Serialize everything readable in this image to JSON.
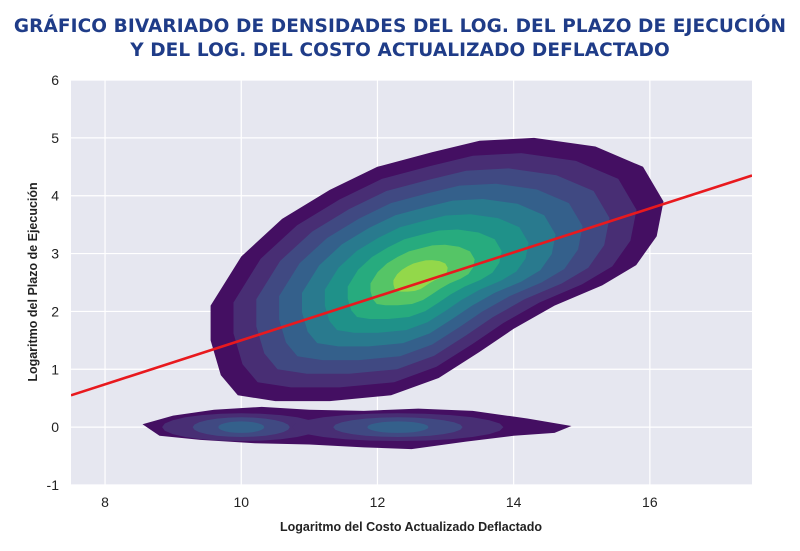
{
  "chart_data": {
    "type": "density_contour",
    "title_lines": [
      "GRÁFICO BIVARIADO DE DENSIDADES DEL LOG. DEL PLAZO DE EJECUCIÓN",
      "Y DEL LOG. DEL COSTO ACTUALIZADO DEFLACTADO"
    ],
    "xlabel": "Logaritmo del Costo Actualizado Deflactado",
    "ylabel": "Logaritmo del Plazo de Ejecución",
    "xlim": [
      7.5,
      17.5
    ],
    "ylim": [
      -1,
      6
    ],
    "xticks": [
      8,
      10,
      12,
      14,
      16
    ],
    "yticks": [
      -1,
      0,
      1,
      2,
      3,
      4,
      5,
      6
    ],
    "grid": true,
    "density_levels": 9,
    "main_cluster": {
      "outer_extent_x": [
        9.5,
        16.2
      ],
      "outer_extent_y": [
        0.45,
        5.0
      ],
      "peak": [
        12.6,
        2.6
      ]
    },
    "lower_band": {
      "extent_x": [
        8.5,
        14.9
      ],
      "center_y": 0.0,
      "modes": [
        [
          10.0,
          0.0
        ],
        [
          12.3,
          0.0
        ]
      ]
    },
    "regression_line": {
      "points": [
        [
          7.5,
          0.55
        ],
        [
          17.5,
          4.35
        ]
      ],
      "color": "#e8191e"
    },
    "colors": {
      "title": "#1f3c88",
      "plot_background": "#e6e7f0",
      "gridline": "#ffffff",
      "density_palette": [
        "#440f62",
        "#482e74",
        "#404982",
        "#34608b",
        "#297a8e",
        "#1f9189",
        "#27ab7e",
        "#55c566",
        "#93d84a"
      ]
    }
  }
}
